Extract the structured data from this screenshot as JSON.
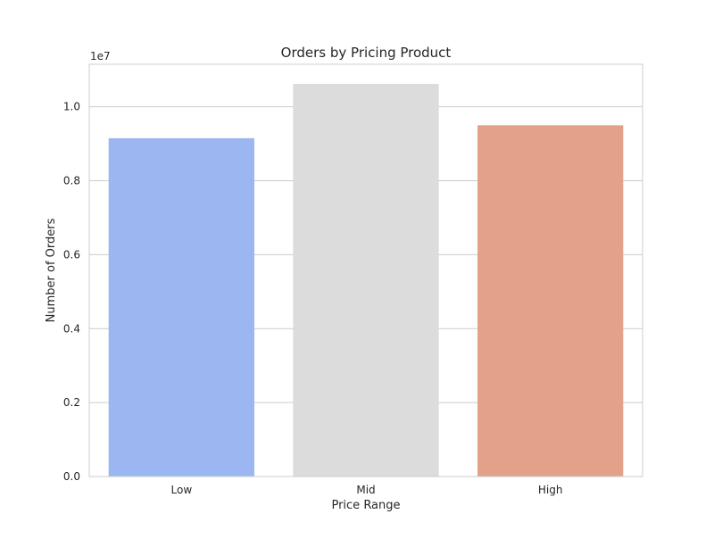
{
  "chart_data": {
    "type": "bar",
    "title": "Orders by Pricing Product",
    "xlabel": "Price Range",
    "ylabel": "Number of Orders",
    "scale_label": "1e7",
    "categories": [
      "Low",
      "Mid",
      "High"
    ],
    "values": [
      9150000,
      10620000,
      9500000
    ],
    "colors": [
      "#9bb6f0",
      "#dcdcdc",
      "#e4a189"
    ],
    "ylim": [
      0,
      11150000
    ],
    "yticks": [
      0,
      2000000,
      4000000,
      6000000,
      8000000,
      10000000
    ],
    "ytick_labels": [
      "0.0",
      "0.2",
      "0.4",
      "0.6",
      "0.8",
      "1.0"
    ],
    "grid": true,
    "grid_axis": "y"
  }
}
